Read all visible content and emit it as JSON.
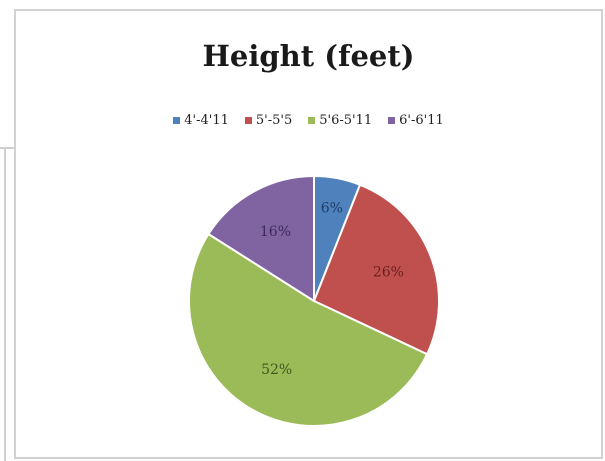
{
  "chart_data": {
    "type": "pie",
    "title": "Height (feet)",
    "legend_position": "top",
    "categories": [
      "4'-4'11",
      "5'-5'5",
      "5'6-5'11",
      "6'-6'11"
    ],
    "values": [
      6,
      26,
      52,
      16
    ],
    "labels": [
      "6%",
      "26%",
      "52%",
      "16%"
    ],
    "colors": [
      "#4f81bd",
      "#c0504d",
      "#9bbb59",
      "#8064a2"
    ],
    "label_colors": [
      "#1f3d66",
      "#6b1f1d",
      "#3e5a1a",
      "#3d2a5c"
    ]
  }
}
